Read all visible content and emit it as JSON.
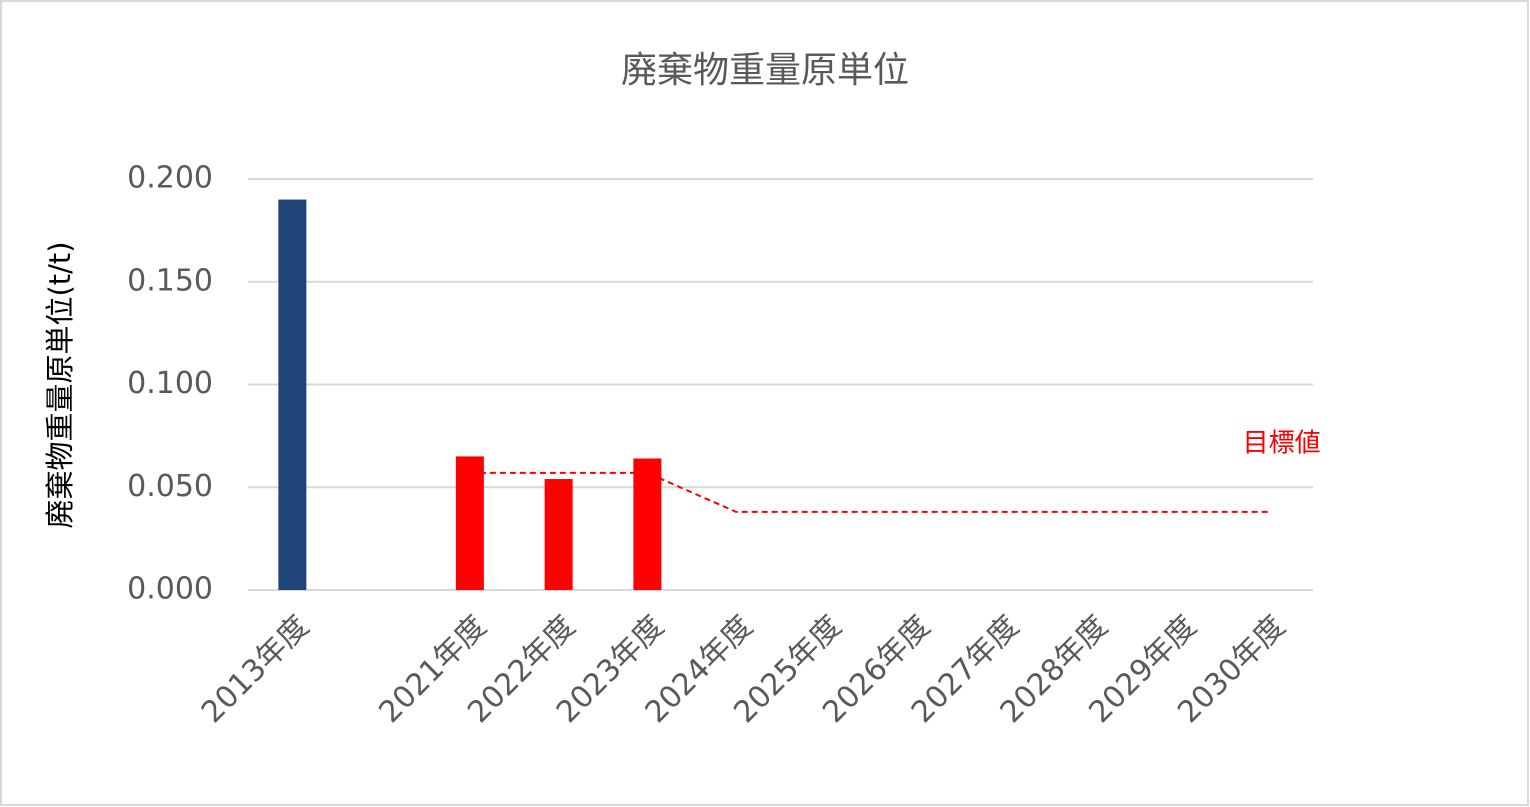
{
  "chart_data": {
    "type": "bar",
    "title": "廃棄物重量原単位",
    "y_label": "廃棄物重量原単位(t/t)",
    "categories": [
      "2013年度",
      null,
      "2021年度",
      "2022年度",
      "2023年度",
      "2024年度",
      "2025年度",
      "2026年度",
      "2027年度",
      "2028年度",
      "2029年度",
      "2030年度"
    ],
    "values": [
      0.19,
      null,
      0.065,
      0.054,
      0.064,
      null,
      null,
      null,
      null,
      null,
      null,
      null
    ],
    "colors": [
      "#1f4578",
      null,
      "#ff0000",
      "#ff0000",
      "#ff0000",
      null,
      null,
      null,
      null,
      null,
      null,
      null
    ],
    "target_line": {
      "name": "目標値",
      "color": "#ff0000",
      "dashed": true,
      "values": [
        null,
        null,
        0.057,
        0.057,
        0.057,
        0.038,
        0.038,
        0.038,
        0.038,
        0.038,
        0.038,
        0.038
      ]
    },
    "ylim": [
      0,
      0.2
    ],
    "yticks": [
      {
        "value": 0,
        "label": "0.000"
      },
      {
        "value": 0.05,
        "label": "0.050"
      },
      {
        "value": 0.1,
        "label": "0.100"
      },
      {
        "value": 0.15,
        "label": "0.150"
      },
      {
        "value": 0.2,
        "label": "0.200"
      }
    ],
    "grid": true
  }
}
